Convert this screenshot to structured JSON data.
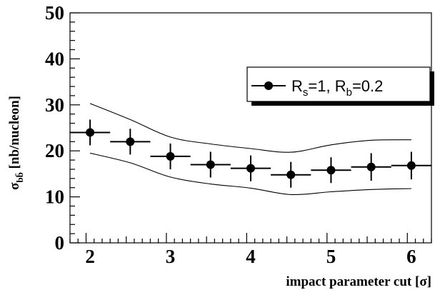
{
  "chart_data": {
    "type": "scatter",
    "title": "",
    "xlabel": "impact parameter cut [",
    "xlabel_symbol": "σ",
    "xlabel_end": "]",
    "ylabel_main": "σ",
    "ylabel_sub": "bb̄",
    "ylabel_unit": " [nb/nucleon]",
    "xlim": [
      1.75,
      6.25
    ],
    "ylim": [
      0,
      50
    ],
    "x_ticks": [
      2,
      3,
      4,
      5,
      6
    ],
    "y_ticks": [
      0,
      10,
      20,
      30,
      40,
      50
    ],
    "grid": false,
    "legend_position": "top-right",
    "series": [
      {
        "name": "R_s=1, R_b=0.2",
        "legend_parts": [
          "R",
          "s",
          "=1, R",
          "b",
          "=0.2"
        ],
        "x": [
          2.0,
          2.5,
          3.0,
          3.5,
          4.0,
          4.5,
          5.0,
          5.5,
          6.0
        ],
        "y": [
          24.0,
          22.0,
          18.8,
          17.0,
          16.2,
          14.8,
          15.8,
          16.5,
          16.8
        ],
        "x_err": [
          0.25,
          0.25,
          0.25,
          0.25,
          0.25,
          0.25,
          0.25,
          0.25,
          0.25
        ],
        "y_err": [
          2.8,
          2.8,
          2.8,
          2.8,
          2.8,
          2.8,
          2.8,
          3.0,
          3.0
        ]
      }
    ],
    "band": {
      "x": [
        2.0,
        2.5,
        3.0,
        3.5,
        4.0,
        4.5,
        5.0,
        5.5,
        6.0
      ],
      "upper": [
        30.3,
        26.8,
        23.0,
        21.5,
        20.5,
        19.7,
        21.3,
        22.3,
        22.4
      ],
      "lower": [
        19.5,
        17.4,
        14.3,
        12.8,
        11.9,
        10.5,
        11.1,
        11.6,
        11.8
      ]
    }
  }
}
